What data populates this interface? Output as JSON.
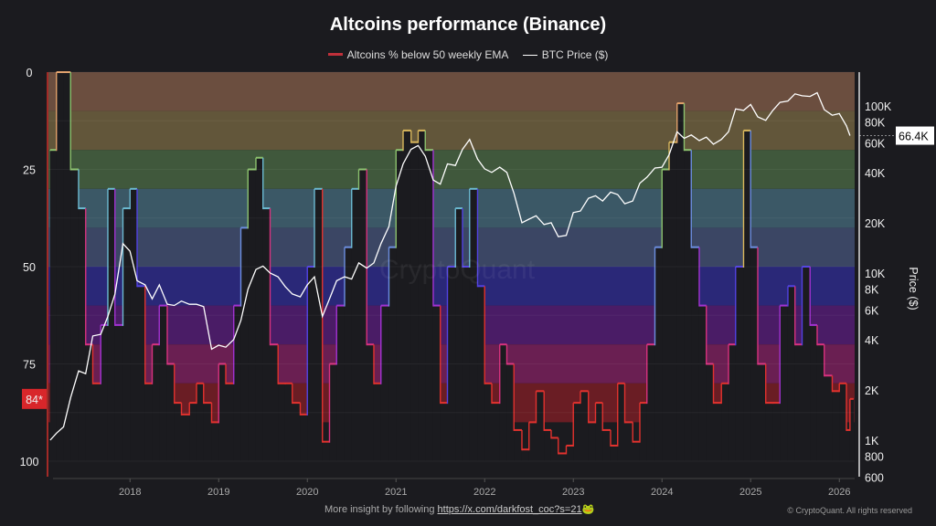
{
  "chart_data": {
    "type": "area",
    "title": "Altcoins performance (Binance)",
    "legend": [
      {
        "name": "Altcoins % below 50 weekly EMA",
        "color": "#c0303a"
      },
      {
        "name": "BTC Price ($)",
        "color": "#ffffff"
      }
    ],
    "legend_position": "top",
    "y_left": {
      "ticks": [
        "0",
        "25",
        "50",
        "75",
        "100"
      ],
      "range": [
        0,
        100
      ],
      "inverted": true,
      "current_label": "84*"
    },
    "y_right": {
      "label": "Price ($)",
      "scale": "log",
      "ticks": [
        "100K",
        "80K",
        "60K",
        "40K",
        "20K",
        "10K",
        "8K",
        "6K",
        "4K",
        "2K",
        "1K",
        "800",
        "600"
      ],
      "tick_values": [
        100000,
        80000,
        60000,
        40000,
        20000,
        10000,
        8000,
        6000,
        4000,
        2000,
        1000,
        800,
        600
      ],
      "current_label": "66.4K"
    },
    "x_ticks": [
      "2018",
      "2019",
      "2020",
      "2021",
      "2022",
      "2023",
      "2024",
      "2025",
      "2026"
    ],
    "band_colors": [
      "#6b4e3f",
      "#62563a",
      "#40583c",
      "#3b5866",
      "#3b4664",
      "#2a2878",
      "#4a1c66",
      "#6a1f52",
      "#6a1d24"
    ],
    "line_colors": [
      "#e2a06a",
      "#d8b65c",
      "#8cc26e",
      "#6cbad2",
      "#6c8ee0",
      "#5242e2",
      "#a232d2",
      "#d8327e",
      "#e2322e"
    ],
    "x": [
      2017.1,
      2017.17,
      2017.25,
      2017.33,
      2017.42,
      2017.5,
      2017.58,
      2017.67,
      2017.75,
      2017.83,
      2017.92,
      2018.0,
      2018.08,
      2018.17,
      2018.25,
      2018.33,
      2018.42,
      2018.5,
      2018.58,
      2018.67,
      2018.75,
      2018.83,
      2018.92,
      2019.0,
      2019.08,
      2019.17,
      2019.25,
      2019.33,
      2019.42,
      2019.5,
      2019.58,
      2019.67,
      2019.75,
      2019.83,
      2019.92,
      2020.0,
      2020.08,
      2020.17,
      2020.25,
      2020.33,
      2020.42,
      2020.5,
      2020.58,
      2020.67,
      2020.75,
      2020.83,
      2020.92,
      2021.0,
      2021.08,
      2021.17,
      2021.25,
      2021.33,
      2021.42,
      2021.5,
      2021.58,
      2021.67,
      2021.75,
      2021.83,
      2021.92,
      2022.0,
      2022.08,
      2022.17,
      2022.25,
      2022.33,
      2022.42,
      2022.5,
      2022.58,
      2022.67,
      2022.75,
      2022.83,
      2022.92,
      2023.0,
      2023.08,
      2023.17,
      2023.25,
      2023.33,
      2023.42,
      2023.5,
      2023.58,
      2023.67,
      2023.75,
      2023.83,
      2023.92,
      2024.0,
      2024.08,
      2024.17,
      2024.25,
      2024.33,
      2024.42,
      2024.5,
      2024.58,
      2024.67,
      2024.75,
      2024.83,
      2024.92,
      2025.0,
      2025.08,
      2025.17,
      2025.25,
      2025.33,
      2025.42,
      2025.5,
      2025.58,
      2025.67,
      2025.75,
      2025.83,
      2025.92,
      2026.0,
      2026.08,
      2026.12
    ],
    "series": [
      {
        "name": "Altcoins % below 50 weekly EMA",
        "values": [
          20,
          0,
          0,
          25,
          35,
          70,
          80,
          65,
          30,
          65,
          35,
          30,
          55,
          80,
          70,
          60,
          75,
          85,
          88,
          85,
          80,
          85,
          90,
          75,
          80,
          60,
          40,
          25,
          22,
          35,
          70,
          80,
          80,
          85,
          88,
          50,
          30,
          95,
          75,
          60,
          45,
          30,
          25,
          70,
          80,
          60,
          45,
          20,
          15,
          18,
          15,
          20,
          60,
          85,
          50,
          35,
          50,
          30,
          55,
          80,
          85,
          70,
          75,
          92,
          97,
          90,
          82,
          92,
          94,
          98,
          96,
          85,
          82,
          90,
          85,
          92,
          96,
          80,
          90,
          95,
          85,
          70,
          45,
          25,
          18,
          8,
          20,
          45,
          60,
          75,
          85,
          80,
          70,
          50,
          15,
          45,
          75,
          85,
          85,
          60,
          55,
          70,
          50,
          65,
          70,
          78,
          82,
          80,
          92,
          84
        ]
      },
      {
        "name": "BTC Price ($)",
        "values": [
          1000,
          1100,
          1200,
          1800,
          2600,
          2500,
          4200,
          4300,
          5500,
          7500,
          15000,
          13500,
          9000,
          8500,
          7000,
          8500,
          6500,
          6400,
          6800,
          6500,
          6500,
          6300,
          3500,
          3700,
          3600,
          4000,
          5200,
          8000,
          10500,
          11000,
          10000,
          9500,
          8300,
          7500,
          7200,
          8500,
          9500,
          5500,
          7000,
          9000,
          9500,
          9200,
          11500,
          10700,
          11500,
          15000,
          19000,
          33000,
          45000,
          55000,
          58000,
          50000,
          36000,
          34000,
          45000,
          44000,
          55000,
          63000,
          48000,
          42000,
          40000,
          43000,
          40000,
          30000,
          20000,
          21000,
          22000,
          19500,
          20000,
          16500,
          16800,
          23000,
          23500,
          28000,
          29000,
          27000,
          30500,
          29500,
          26000,
          27000,
          34500,
          37500,
          42500,
          43000,
          51000,
          70000,
          64000,
          67000,
          62000,
          65000,
          59000,
          63000,
          70000,
          96000,
          94000,
          102000,
          86000,
          82000,
          94000,
          105000,
          107000,
          118000,
          115000,
          114000,
          120000,
          95000,
          88000,
          90000,
          76000,
          66400
        ]
      }
    ]
  },
  "watermark": "CryptoQuant",
  "footer": {
    "text": "More insight by following",
    "link": "https://x.com/darkfost_coc?s=21",
    "emoji": "🐸"
  },
  "copyright": "© CryptoQuant. All rights reserved"
}
